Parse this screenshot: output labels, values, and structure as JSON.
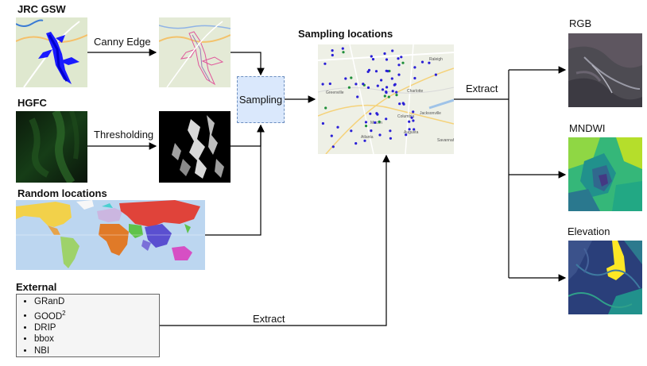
{
  "inputs": {
    "jrc_title": "JRC GSW",
    "hgfc_title": "HGFC",
    "random_title": "Random locations",
    "external_title": "External",
    "external_items": [
      "GRanD",
      "GOOD",
      "DRIP",
      "bbox",
      "NBI"
    ],
    "external_good_superscript": "2"
  },
  "operations": {
    "canny_label": "Canny Edge",
    "threshold_label": "Thresholding",
    "sampling_label": "Sampling",
    "extract_label_top": "Extract",
    "extract_label_bottom": "Extract"
  },
  "sampling": {
    "title": "Sampling locations",
    "map_places": [
      "Greenville",
      "Charlotte",
      "Columbia",
      "Atlanta",
      "Augusta",
      "Savannah",
      "Jacksonville",
      "Macon",
      "Raleigh"
    ]
  },
  "outputs": {
    "rgb_title": "RGB",
    "mndwi_title": "MNDWI",
    "elevation_title": "Elevation"
  },
  "colors": {
    "sampling_fill": "#dae8fc",
    "sampling_border": "#6c8ebf",
    "external_fill": "#f5f5f5",
    "water_blue": "#1a1aff",
    "point_blue": "#2a1fd6",
    "point_green": "#1f8f3a"
  },
  "icons": {
    "arrowhead": "arrow-right-icon"
  }
}
